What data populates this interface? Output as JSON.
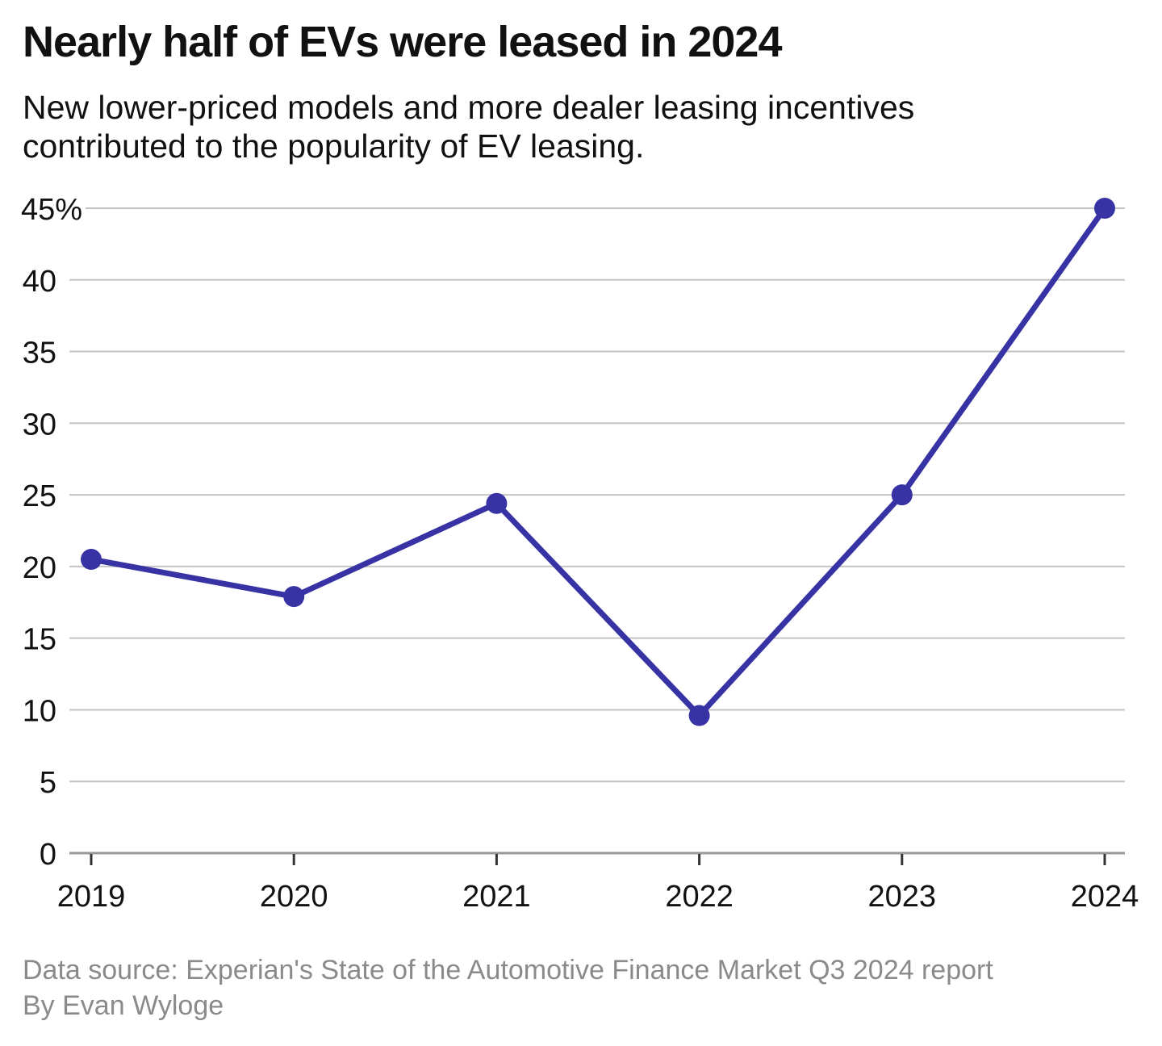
{
  "header": {
    "title": "Nearly half of EVs were leased in 2024",
    "subtitle": "New lower-priced models and more dealer leasing incentives contributed to the popularity of EV leasing."
  },
  "footer": {
    "source": "Data source: Experian's State of the Automotive Finance Market Q3 2024 report",
    "byline": "By Evan Wyloge"
  },
  "colors": {
    "line": "#3733a5",
    "grid": "#c4c4c4",
    "axis": "#999999",
    "tick": "#333333",
    "text": "#111111",
    "muted": "#8a8a8a"
  },
  "chart_data": {
    "type": "line",
    "title": "Nearly half of EVs were leased in 2024",
    "subtitle": "New lower-priced models and more dealer leasing incentives contributed to the popularity of EV leasing.",
    "categories": [
      "2019",
      "2020",
      "2021",
      "2022",
      "2023",
      "2024"
    ],
    "values": [
      20.5,
      17.9,
      24.4,
      9.6,
      25,
      45
    ],
    "ylim": [
      0,
      45
    ],
    "yticks": [
      0,
      5,
      10,
      15,
      20,
      25,
      30,
      35,
      40,
      45
    ],
    "ytick_labels": [
      "0",
      "5",
      "10",
      "15",
      "20",
      "25",
      "30",
      "35",
      "40",
      "45%"
    ],
    "grid": true,
    "legend": "none"
  }
}
